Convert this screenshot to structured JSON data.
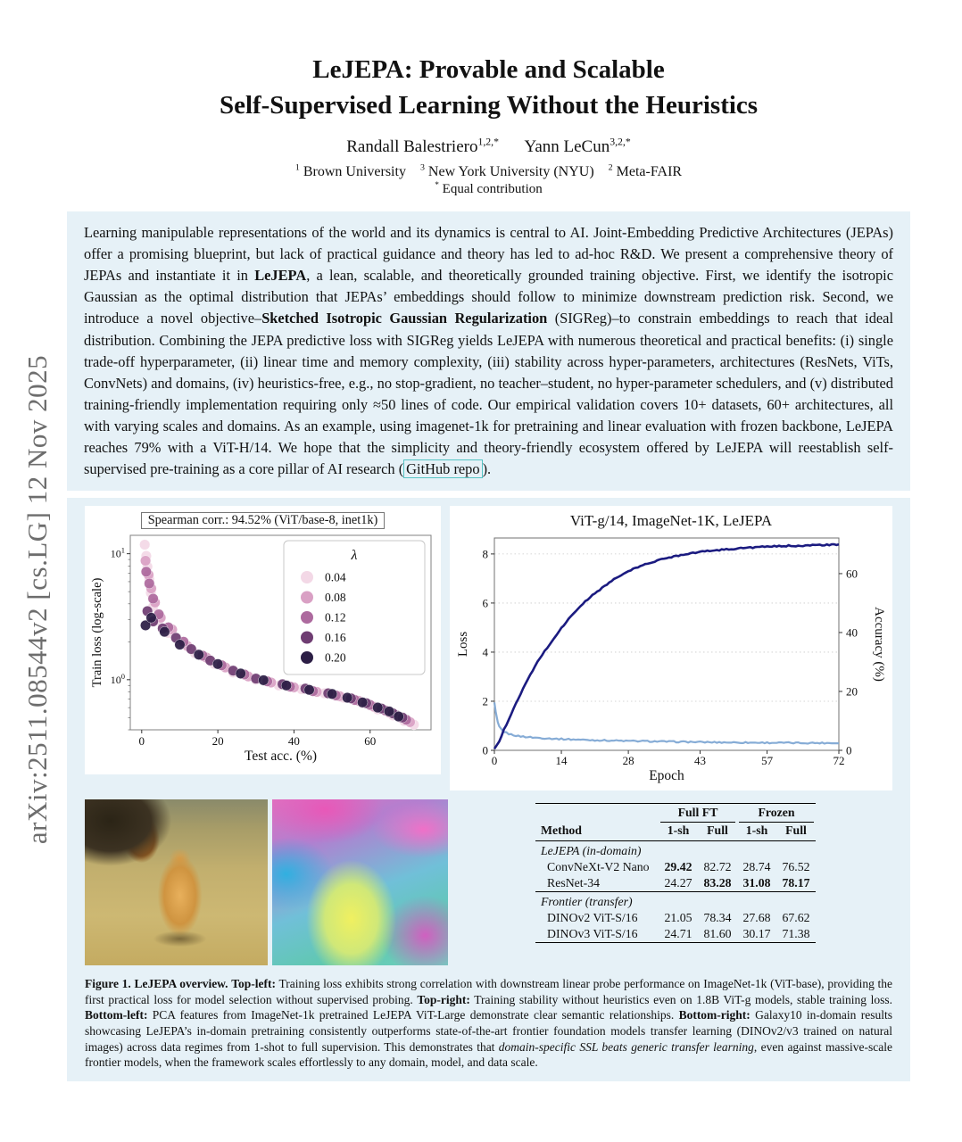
{
  "page": {
    "arxiv_stamp": "arXiv:2511.08544v2  [cs.LG]  12 Nov 2025"
  },
  "header": {
    "title_line1": "LeJEPA: Provable and Scalable",
    "title_line2": "Self-Supervised Learning Without the Heuristics",
    "authors_rich": [
      {
        "t": "Randall Balestriero"
      },
      {
        "t": "1,2,*",
        "cls": "sup"
      },
      {
        "t": "  "
      },
      {
        "t": "Yann LeCun"
      },
      {
        "t": "3,2,*",
        "cls": "sup"
      }
    ],
    "affiliations_rich": [
      {
        "t": "1",
        "cls": "sup"
      },
      {
        "t": " Brown University "
      },
      {
        "t": "3",
        "cls": "sup"
      },
      {
        "t": " New York University (NYU) "
      },
      {
        "t": "2",
        "cls": "sup"
      },
      {
        "t": " Meta-FAIR"
      }
    ],
    "equal_rich": [
      {
        "t": "*",
        "cls": "sup"
      },
      {
        "t": " Equal contribution"
      }
    ]
  },
  "abstract": {
    "segments": [
      {
        "t": "Learning manipulable representations of the world and its dynamics is central to AI. Joint-Embedding Predictive Architectures (JEPAs) offer a promising blueprint, but lack of practical guidance and theory has led to ad-hoc R&D. We present a comprehensive theory of JEPAs and instantiate it in "
      },
      {
        "t": "LeJEPA",
        "b": true
      },
      {
        "t": ", a lean, scalable, and theoretically grounded training objective. First, we identify the isotropic Gaussian as the optimal distribution that JEPAs’ embeddings should follow to minimize downstream prediction risk. Second, we introduce a novel objective–"
      },
      {
        "t": "Sketched Isotropic Gaussian Regularization",
        "b": true
      },
      {
        "t": " (SIGReg)–to constrain embeddings to reach that ideal distribution. Combining the JEPA predictive loss with SIGReg yields LeJEPA with numerous theoretical and practical benefits: (i) single trade-off hyperparameter, (ii) linear time and memory complexity, (iii) stability across hyper-parameters, architectures (ResNets, ViTs, ConvNets) and domains, (iv) heuristics-free, e.g., no stop-gradient, no teacher–student, no hyper-parameter schedulers, and (v) distributed training-friendly implementation requiring only ≈50 lines of code. Our empirical validation covers 10+ datasets, 60+ architectures, all with varying scales and domains. As an example, using imagenet-1k for pretraining and linear evaluation with frozen backbone, LeJEPA reaches 79% with a ViT-H/14. We hope that the simplicity and theory-friendly ecosystem offered by LeJEPA will reestablish self-supervised pre-training as a core pillar of AI research ("
      },
      {
        "t": "GitHub repo",
        "cls": "link-box",
        "name": "github-repo-link",
        "inter": true
      },
      {
        "t": ")."
      }
    ]
  },
  "figure": {
    "caption_segments": [
      {
        "t": "Figure 1.",
        "b": true
      },
      {
        "t": " "
      },
      {
        "t": "LeJEPA overview.",
        "b": true
      },
      {
        "t": " "
      },
      {
        "t": "Top-left:",
        "b": true
      },
      {
        "t": " Training loss exhibits strong correlation with downstream linear probe performance on ImageNet-1k (ViT-base), providing the first practical loss for model selection without supervised probing. "
      },
      {
        "t": "Top-right:",
        "b": true
      },
      {
        "t": " Training stability without heuristics even on 1.8B ViT-g models, stable training loss. "
      },
      {
        "t": "Bottom-left:",
        "b": true
      },
      {
        "t": " PCA features from ImageNet-1k pretrained LeJEPA ViT-Large demonstrate clear semantic relationships. "
      },
      {
        "t": "Bottom-right:",
        "b": true
      },
      {
        "t": " Galaxy10 in-domain results showcasing LeJEPA’s in-domain pretraining consistently outperforms state-of-the-art frontier foundation models transfer learning (DINOv2/v3 trained on natural images) across data regimes from 1-shot to full supervision. This demonstrates that "
      },
      {
        "t": "domain-specific SSL beats generic transfer learning",
        "i": true
      },
      {
        "t": ", even against massive-scale frontier models, when the framework scales effortlessly to any domain, model, and data scale."
      }
    ]
  },
  "chart_data": [
    {
      "id": "loss-vs-accuracy-scatter",
      "type": "scatter",
      "title": "Spearman corr.: 94.52% (ViT/base-8, inet1k)",
      "xlabel": "Test acc. (%)",
      "ylabel": "Train loss (log-scale)",
      "xlim": [
        -3,
        76
      ],
      "ylim": [
        0.4,
        14
      ],
      "y_scale": "log",
      "xticks": [
        0,
        20,
        40,
        60
      ],
      "yticks": [
        1,
        10
      ],
      "yticks_minor": [
        0.4,
        0.5,
        0.6,
        0.7,
        0.8,
        0.9,
        2,
        3,
        4,
        5,
        6,
        7,
        8,
        9
      ],
      "legend_title": "λ",
      "legend_position": "upper right",
      "series": [
        {
          "name": "0.04",
          "color": "#f3d8e6",
          "points": [
            [
              0.8,
              11.8
            ],
            [
              1.2,
              9.6
            ],
            [
              1.5,
              7.9
            ],
            [
              2,
              6.3
            ],
            [
              2.4,
              4.9
            ],
            [
              3,
              3.8
            ],
            [
              4.5,
              2.95
            ],
            [
              7,
              2.35
            ],
            [
              10,
              1.95
            ],
            [
              14,
              1.62
            ],
            [
              19,
              1.34
            ],
            [
              24,
              1.14
            ],
            [
              30,
              1.0
            ],
            [
              36,
              0.9
            ],
            [
              42,
              0.84
            ],
            [
              48,
              0.78
            ],
            [
              53,
              0.72
            ],
            [
              58,
              0.65
            ],
            [
              62,
              0.58
            ],
            [
              66,
              0.52
            ],
            [
              69,
              0.47
            ],
            [
              71.5,
              0.44
            ]
          ]
        },
        {
          "name": "0.08",
          "color": "#d9a0c4",
          "points": [
            [
              1,
              8.8
            ],
            [
              1.8,
              6.8
            ],
            [
              2.5,
              5.3
            ],
            [
              3.5,
              4.1
            ],
            [
              5,
              3.1
            ],
            [
              8,
              2.5
            ],
            [
              12,
              1.85
            ],
            [
              17,
              1.5
            ],
            [
              22,
              1.25
            ],
            [
              28,
              1.06
            ],
            [
              34,
              0.95
            ],
            [
              40,
              0.87
            ],
            [
              46,
              0.8
            ],
            [
              52,
              0.74
            ],
            [
              57,
              0.68
            ],
            [
              61,
              0.61
            ],
            [
              65,
              0.55
            ],
            [
              68,
              0.5
            ],
            [
              70.5,
              0.46
            ]
          ]
        },
        {
          "name": "0.12",
          "color": "#ad6a9e",
          "points": [
            [
              1.2,
              7.2
            ],
            [
              2,
              5.8
            ],
            [
              3,
              4.4
            ],
            [
              4.5,
              3.3
            ],
            [
              7,
              2.6
            ],
            [
              11,
              2.0
            ],
            [
              16,
              1.55
            ],
            [
              21,
              1.3
            ],
            [
              27,
              1.1
            ],
            [
              33,
              0.97
            ],
            [
              39,
              0.88
            ],
            [
              45,
              0.81
            ],
            [
              51,
              0.75
            ],
            [
              56,
              0.69
            ],
            [
              60,
              0.63
            ],
            [
              64,
              0.57
            ],
            [
              67,
              0.52
            ],
            [
              69.5,
              0.48
            ]
          ]
        },
        {
          "name": "0.16",
          "color": "#6f3d72",
          "points": [
            [
              1.5,
              3.5
            ],
            [
              3,
              2.9
            ],
            [
              5.5,
              2.55
            ],
            [
              9,
              2.15
            ],
            [
              13,
              1.75
            ],
            [
              18,
              1.42
            ],
            [
              24,
              1.18
            ],
            [
              30,
              1.02
            ],
            [
              37,
              0.92
            ],
            [
              43,
              0.85
            ],
            [
              49,
              0.78
            ],
            [
              55,
              0.71
            ],
            [
              59,
              0.65
            ],
            [
              63,
              0.59
            ],
            [
              66,
              0.54
            ],
            [
              68.5,
              0.5
            ]
          ]
        },
        {
          "name": "0.20",
          "color": "#2c1e45",
          "points": [
            [
              1,
              2.7
            ],
            [
              2.5,
              3.1
            ],
            [
              6,
              2.4
            ],
            [
              10,
              1.9
            ],
            [
              15,
              1.58
            ],
            [
              20,
              1.33
            ],
            [
              26,
              1.12
            ],
            [
              32,
              0.99
            ],
            [
              38,
              0.9
            ],
            [
              44,
              0.83
            ],
            [
              50,
              0.77
            ],
            [
              54,
              0.72
            ],
            [
              58,
              0.66
            ],
            [
              62,
              0.6
            ],
            [
              65,
              0.56
            ],
            [
              67.5,
              0.51
            ]
          ]
        }
      ]
    },
    {
      "id": "training-curves",
      "type": "line",
      "title": "ViT-g/14, ImageNet-1K, LeJEPA",
      "xlabel": "Epoch",
      "ylabel_left": "Loss",
      "ylabel_right": "Accuracy (%)",
      "xlim": [
        0,
        72
      ],
      "xticks": [
        0,
        14,
        28,
        43,
        57,
        72
      ],
      "ylim_left": [
        0,
        8.65
      ],
      "yticks_left": [
        0,
        2,
        4,
        6,
        8
      ],
      "ylim_right": [
        0,
        72.1
      ],
      "yticks_right": [
        0,
        20,
        40,
        60
      ],
      "left_color": "#4878a8",
      "right_color": "#1b1b80",
      "grid": "dotted-horizontal",
      "series": [
        {
          "name": "Loss",
          "axis": "left",
          "color": "#7fa8d4",
          "points": [
            [
              0,
              1.95
            ],
            [
              0.3,
              1.55
            ],
            [
              0.7,
              1.15
            ],
            [
              1,
              0.98
            ],
            [
              1.5,
              0.85
            ],
            [
              2,
              0.76
            ],
            [
              3,
              0.67
            ],
            [
              4,
              0.62
            ],
            [
              5,
              0.58
            ],
            [
              7,
              0.54
            ],
            [
              9,
              0.51
            ],
            [
              12,
              0.48
            ],
            [
              14,
              0.46
            ],
            [
              17,
              0.44
            ],
            [
              20,
              0.42
            ],
            [
              24,
              0.4
            ],
            [
              28,
              0.38
            ],
            [
              32,
              0.37
            ],
            [
              36,
              0.355
            ],
            [
              40,
              0.345
            ],
            [
              43,
              0.335
            ],
            [
              47,
              0.325
            ],
            [
              50,
              0.32
            ],
            [
              54,
              0.315
            ],
            [
              57,
              0.31
            ],
            [
              61,
              0.305
            ],
            [
              64,
              0.3
            ],
            [
              68,
              0.3
            ],
            [
              72,
              0.295
            ]
          ]
        },
        {
          "name": "Accuracy",
          "axis": "right",
          "color": "#1b1b80",
          "points": [
            [
              0,
              0.5
            ],
            [
              1,
              3
            ],
            [
              2,
              7
            ],
            [
              3,
              10.5
            ],
            [
              4,
              14
            ],
            [
              5,
              17.5
            ],
            [
              6,
              21
            ],
            [
              7,
              24
            ],
            [
              8,
              27
            ],
            [
              9,
              30
            ],
            [
              10,
              32.5
            ],
            [
              12,
              37
            ],
            [
              14,
              41.5
            ],
            [
              16,
              45.5
            ],
            [
              18,
              49
            ],
            [
              20,
              52
            ],
            [
              22,
              54.5
            ],
            [
              24,
              57
            ],
            [
              26,
              59
            ],
            [
              28,
              60.8
            ],
            [
              30,
              62.2
            ],
            [
              32,
              63.4
            ],
            [
              34,
              64.4
            ],
            [
              36,
              65.3
            ],
            [
              38,
              66
            ],
            [
              40,
              66.7
            ],
            [
              43,
              67.4
            ],
            [
              46,
              67.9
            ],
            [
              49,
              68.3
            ],
            [
              52,
              68.7
            ],
            [
              55,
              69
            ],
            [
              58,
              69.2
            ],
            [
              61,
              69.4
            ],
            [
              64,
              69.5
            ],
            [
              68,
              69.7
            ],
            [
              72,
              69.8
            ]
          ]
        }
      ]
    },
    {
      "id": "galaxy10-results-table",
      "type": "table",
      "column_groups": [
        "Full FT",
        "Frozen"
      ],
      "columns": [
        "Method",
        "1-sh",
        "Full",
        "1-sh",
        "Full"
      ],
      "groups": [
        {
          "label": "LeJEPA (in-domain)",
          "rows": [
            {
              "method": "ConvNeXt-V2 Nano",
              "values": [
                "29.42",
                "82.72",
                "28.74",
                "76.52"
              ],
              "bold": [
                1,
                0,
                0,
                0
              ]
            },
            {
              "method": "ResNet-34",
              "values": [
                "24.27",
                "83.28",
                "31.08",
                "78.17"
              ],
              "bold": [
                0,
                1,
                1,
                1
              ]
            }
          ]
        },
        {
          "label": "Frontier (transfer)",
          "rows": [
            {
              "method": "DINOv2 ViT-S/16",
              "values": [
                "21.05",
                "78.34",
                "27.68",
                "67.62"
              ],
              "bold": [
                0,
                0,
                0,
                0
              ]
            },
            {
              "method": "DINOv3 ViT-S/16",
              "values": [
                "24.71",
                "81.60",
                "30.17",
                "71.38"
              ],
              "bold": [
                0,
                0,
                0,
                0
              ]
            }
          ]
        }
      ]
    }
  ]
}
